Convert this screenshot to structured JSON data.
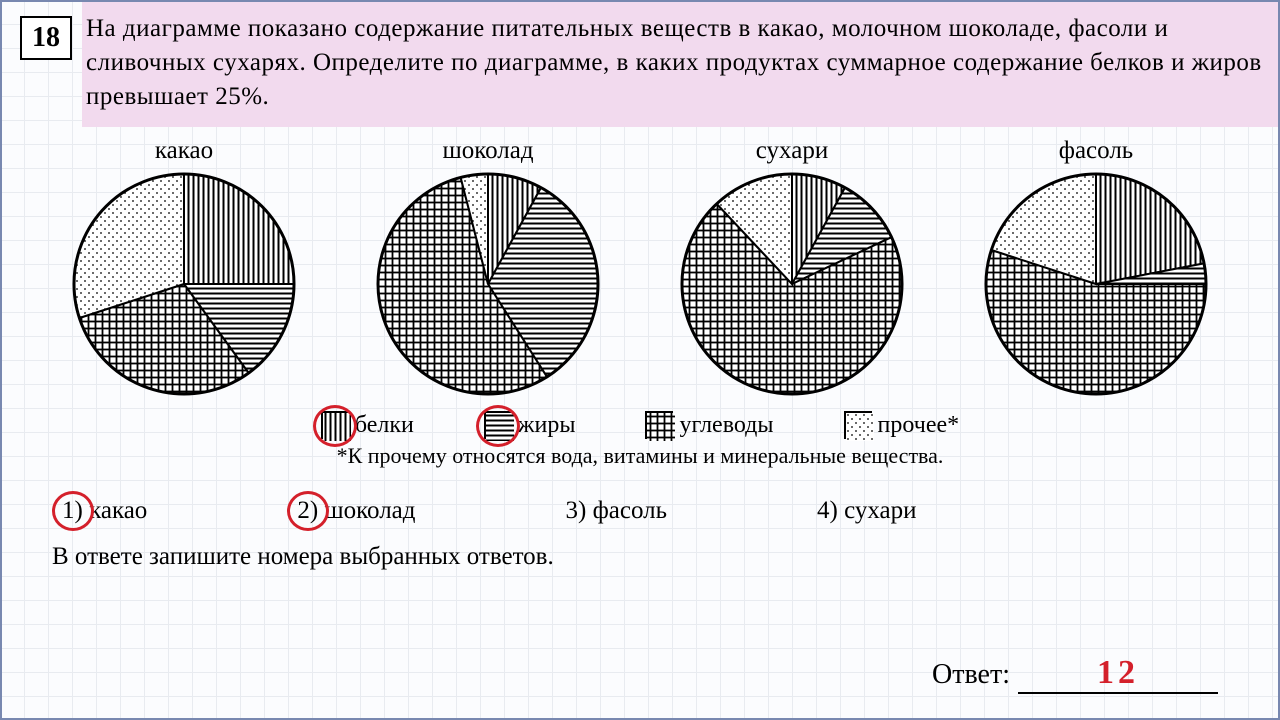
{
  "question_number": "18",
  "question_text": "На диаграмме показано содержание питательных веществ в какао, молочном шоколаде, фасоли и сливочных сухарях. Определите по диаграмме, в каких продуктах суммарное содержание белков и жиров превышает 25%.",
  "charts": [
    {
      "title": "какао",
      "slices": [
        {
          "pct": 25,
          "fill": "vlines"
        },
        {
          "pct": 15,
          "fill": "hlines"
        },
        {
          "pct": 30,
          "fill": "cross"
        },
        {
          "pct": 30,
          "fill": "dots"
        }
      ]
    },
    {
      "title": "шоколад",
      "slices": [
        {
          "pct": 8,
          "fill": "vlines"
        },
        {
          "pct": 33,
          "fill": "hlines"
        },
        {
          "pct": 55,
          "fill": "cross"
        },
        {
          "pct": 4,
          "fill": "dots"
        }
      ]
    },
    {
      "title": "сухари",
      "slices": [
        {
          "pct": 8,
          "fill": "vlines"
        },
        {
          "pct": 10,
          "fill": "hlines"
        },
        {
          "pct": 70,
          "fill": "cross"
        },
        {
          "pct": 12,
          "fill": "dots"
        }
      ]
    },
    {
      "title": "фасоль",
      "slices": [
        {
          "pct": 22,
          "fill": "vlines"
        },
        {
          "pct": 3,
          "fill": "hlines"
        },
        {
          "pct": 55,
          "fill": "cross"
        },
        {
          "pct": 20,
          "fill": "dots"
        }
      ]
    }
  ],
  "pie_radius": 110,
  "legend": [
    {
      "label": "белки",
      "fill": "vlines",
      "circled": true
    },
    {
      "label": "жиры",
      "fill": "hlines",
      "circled": true
    },
    {
      "label": "углеводы",
      "fill": "cross",
      "circled": false
    },
    {
      "label": "прочее*",
      "fill": "dots",
      "circled": false
    }
  ],
  "footnote": "*К прочему относятся вода, витамины и минеральные вещества.",
  "choices": [
    {
      "num": "1)",
      "label": "какао",
      "circled": true
    },
    {
      "num": "2)",
      "label": "шоколад",
      "circled": true
    },
    {
      "num": "3)",
      "label": "фасоль",
      "circled": false
    },
    {
      "num": "4)",
      "label": "сухари",
      "circled": false
    }
  ],
  "instruction": "В ответе запишите номера выбранных ответов.",
  "answer_label": "Ответ:",
  "answer_value": "12",
  "patterns": {
    "vlines": {
      "stroke": "#000",
      "bg": "#fff"
    },
    "hlines": {
      "stroke": "#000",
      "bg": "#fff"
    },
    "cross": {
      "stroke": "#000",
      "bg": "#fff"
    },
    "dots": {
      "stroke": "#000",
      "bg": "#fff"
    }
  },
  "circle_color": "#d4202b"
}
